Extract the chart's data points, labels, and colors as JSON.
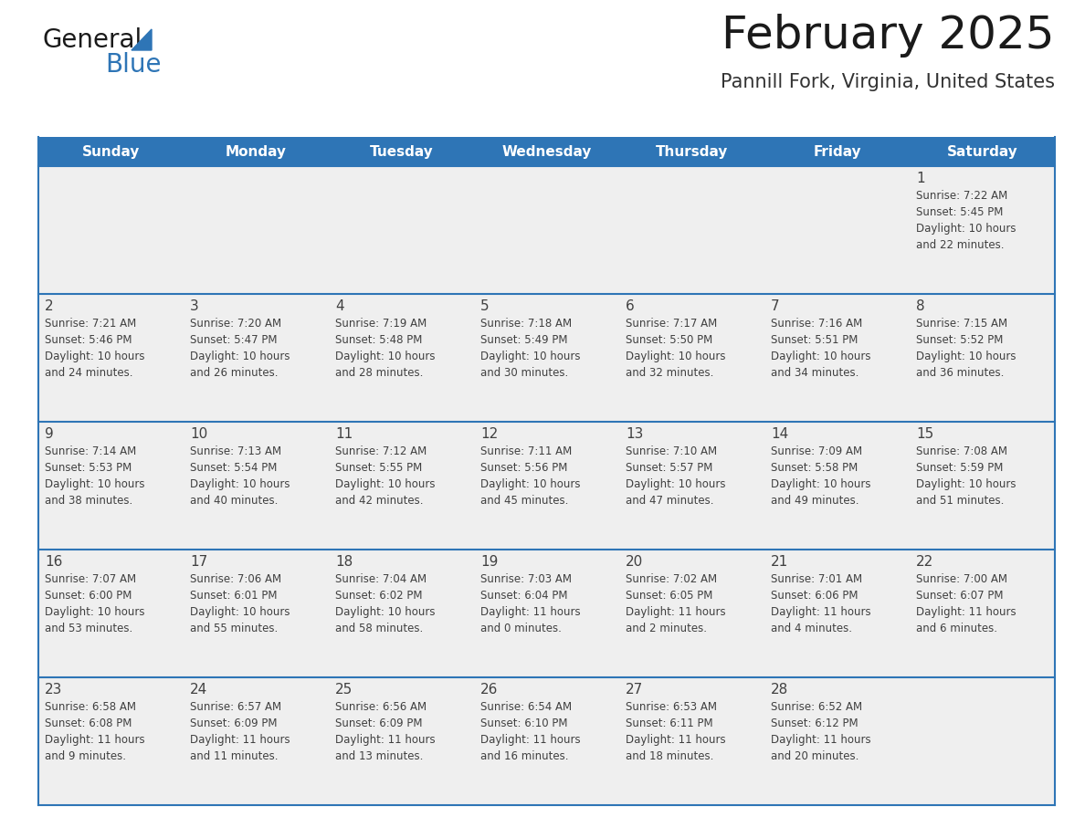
{
  "title": "February 2025",
  "subtitle": "Pannill Fork, Virginia, United States",
  "header_color": "#2E75B6",
  "header_text_color": "#FFFFFF",
  "cell_bg_color": "#EFEFEF",
  "border_color": "#2E75B6",
  "text_color": "#404040",
  "days_of_week": [
    "Sunday",
    "Monday",
    "Tuesday",
    "Wednesday",
    "Thursday",
    "Friday",
    "Saturday"
  ],
  "calendar_data": [
    [
      null,
      null,
      null,
      null,
      null,
      null,
      {
        "day": 1,
        "sunrise": "7:22 AM",
        "sunset": "5:45 PM",
        "daylight": "10 hours and 22 minutes."
      }
    ],
    [
      {
        "day": 2,
        "sunrise": "7:21 AM",
        "sunset": "5:46 PM",
        "daylight": "10 hours and 24 minutes."
      },
      {
        "day": 3,
        "sunrise": "7:20 AM",
        "sunset": "5:47 PM",
        "daylight": "10 hours and 26 minutes."
      },
      {
        "day": 4,
        "sunrise": "7:19 AM",
        "sunset": "5:48 PM",
        "daylight": "10 hours and 28 minutes."
      },
      {
        "day": 5,
        "sunrise": "7:18 AM",
        "sunset": "5:49 PM",
        "daylight": "10 hours and 30 minutes."
      },
      {
        "day": 6,
        "sunrise": "7:17 AM",
        "sunset": "5:50 PM",
        "daylight": "10 hours and 32 minutes."
      },
      {
        "day": 7,
        "sunrise": "7:16 AM",
        "sunset": "5:51 PM",
        "daylight": "10 hours and 34 minutes."
      },
      {
        "day": 8,
        "sunrise": "7:15 AM",
        "sunset": "5:52 PM",
        "daylight": "10 hours and 36 minutes."
      }
    ],
    [
      {
        "day": 9,
        "sunrise": "7:14 AM",
        "sunset": "5:53 PM",
        "daylight": "10 hours and 38 minutes."
      },
      {
        "day": 10,
        "sunrise": "7:13 AM",
        "sunset": "5:54 PM",
        "daylight": "10 hours and 40 minutes."
      },
      {
        "day": 11,
        "sunrise": "7:12 AM",
        "sunset": "5:55 PM",
        "daylight": "10 hours and 42 minutes."
      },
      {
        "day": 12,
        "sunrise": "7:11 AM",
        "sunset": "5:56 PM",
        "daylight": "10 hours and 45 minutes."
      },
      {
        "day": 13,
        "sunrise": "7:10 AM",
        "sunset": "5:57 PM",
        "daylight": "10 hours and 47 minutes."
      },
      {
        "day": 14,
        "sunrise": "7:09 AM",
        "sunset": "5:58 PM",
        "daylight": "10 hours and 49 minutes."
      },
      {
        "day": 15,
        "sunrise": "7:08 AM",
        "sunset": "5:59 PM",
        "daylight": "10 hours and 51 minutes."
      }
    ],
    [
      {
        "day": 16,
        "sunrise": "7:07 AM",
        "sunset": "6:00 PM",
        "daylight": "10 hours and 53 minutes."
      },
      {
        "day": 17,
        "sunrise": "7:06 AM",
        "sunset": "6:01 PM",
        "daylight": "10 hours and 55 minutes."
      },
      {
        "day": 18,
        "sunrise": "7:04 AM",
        "sunset": "6:02 PM",
        "daylight": "10 hours and 58 minutes."
      },
      {
        "day": 19,
        "sunrise": "7:03 AM",
        "sunset": "6:04 PM",
        "daylight": "11 hours and 0 minutes."
      },
      {
        "day": 20,
        "sunrise": "7:02 AM",
        "sunset": "6:05 PM",
        "daylight": "11 hours and 2 minutes."
      },
      {
        "day": 21,
        "sunrise": "7:01 AM",
        "sunset": "6:06 PM",
        "daylight": "11 hours and 4 minutes."
      },
      {
        "day": 22,
        "sunrise": "7:00 AM",
        "sunset": "6:07 PM",
        "daylight": "11 hours and 6 minutes."
      }
    ],
    [
      {
        "day": 23,
        "sunrise": "6:58 AM",
        "sunset": "6:08 PM",
        "daylight": "11 hours and 9 minutes."
      },
      {
        "day": 24,
        "sunrise": "6:57 AM",
        "sunset": "6:09 PM",
        "daylight": "11 hours and 11 minutes."
      },
      {
        "day": 25,
        "sunrise": "6:56 AM",
        "sunset": "6:09 PM",
        "daylight": "11 hours and 13 minutes."
      },
      {
        "day": 26,
        "sunrise": "6:54 AM",
        "sunset": "6:10 PM",
        "daylight": "11 hours and 16 minutes."
      },
      {
        "day": 27,
        "sunrise": "6:53 AM",
        "sunset": "6:11 PM",
        "daylight": "11 hours and 18 minutes."
      },
      {
        "day": 28,
        "sunrise": "6:52 AM",
        "sunset": "6:12 PM",
        "daylight": "11 hours and 20 minutes."
      },
      null
    ]
  ],
  "logo_text_general": "General",
  "logo_text_blue": "Blue"
}
